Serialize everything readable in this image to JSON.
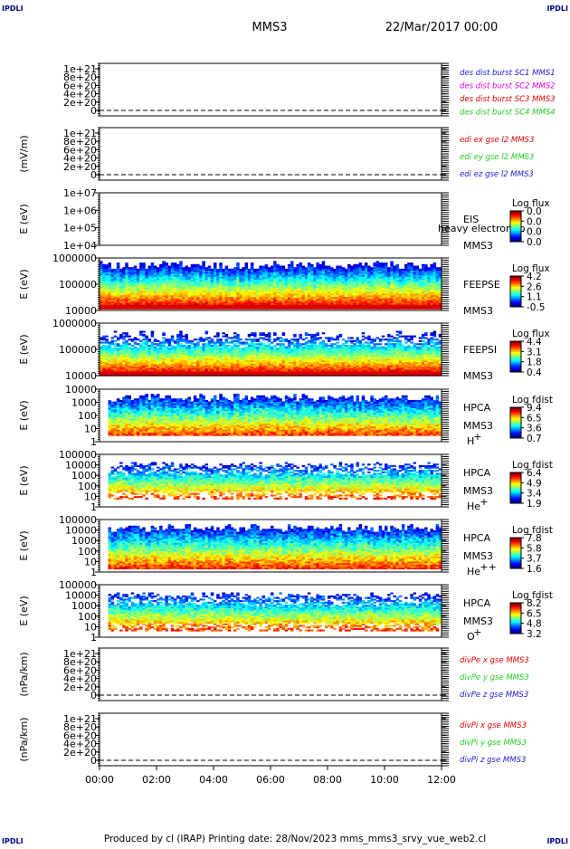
{
  "corners": {
    "tl": "IPDLI",
    "tr": "IPDLI",
    "bl": "IPDLI",
    "br": "IPDLI"
  },
  "header": {
    "mission": "MMS3",
    "date": "22/Mar/2017 00:00"
  },
  "footer": {
    "text": "Produced by cl (IRAP)   Printing date: 28/Nov/2023   mms_mms3_srvy_vue_web2.cl"
  },
  "colors": {
    "blue": "#1a1ad6",
    "magenta": "#e000e0",
    "red": "#e00000",
    "green": "#22cc22"
  },
  "chart_data": [
    {
      "type": "line",
      "panel": "des-dist",
      "ylabel": "",
      "yticks": [
        "1e+21",
        "8e+20",
        "6e+20",
        "4e+20",
        "2e+20",
        "0"
      ],
      "series": [
        {
          "name": "des dist burst SC1 MMS1",
          "color": "blue"
        },
        {
          "name": "des dist burst SC2 MMS2",
          "color": "magenta"
        },
        {
          "name": "des dist burst SC3 MMS3",
          "color": "red"
        },
        {
          "name": "des dist burst SC4 MMS4",
          "color": "green"
        }
      ]
    },
    {
      "type": "line",
      "panel": "edi",
      "ylabel": "(mV/m)",
      "yticks": [
        "1e+21",
        "8e+20",
        "6e+20",
        "4e+20",
        "2e+20",
        "0"
      ],
      "series": [
        {
          "name": "edi ex gse l2 MMS3",
          "color": "red"
        },
        {
          "name": "edi ey gse l2 MMS3",
          "color": "green"
        },
        {
          "name": "edi ez gse l2 MMS3",
          "color": "blue"
        }
      ]
    },
    {
      "type": "heatmap",
      "panel": "eis",
      "ylabel": "E (eV)",
      "yticks": [
        "1e+07",
        "1e+06",
        "1e+05",
        "1e+04"
      ],
      "inst": [
        "EIS",
        "MMS3"
      ],
      "overlay": "heavy electron to",
      "cbar_title": "Log flux",
      "cbar_ticks": [
        "0.0",
        "0.0",
        "0.0",
        "0.0"
      ]
    },
    {
      "type": "heatmap",
      "panel": "feepse",
      "ylabel": "E (eV)",
      "yticks": [
        "1000000",
        "100000",
        "10000"
      ],
      "inst": [
        "FEEPSE",
        "MMS3"
      ],
      "cbar_title": "Log flux",
      "cbar_ticks": [
        "4.2",
        "2.6",
        "1.1",
        "-0.5"
      ]
    },
    {
      "type": "heatmap",
      "panel": "feepsi",
      "ylabel": "E (eV)",
      "yticks": [
        "1000000",
        "100000",
        "10000"
      ],
      "inst": [
        "FEEPSI",
        "MMS3"
      ],
      "cbar_title": "Log flux",
      "cbar_ticks": [
        "4.4",
        "3.1",
        "1.8",
        "0.4"
      ]
    },
    {
      "type": "heatmap",
      "panel": "hpca-h",
      "ylabel": "E (eV)",
      "yticks": [
        "10000",
        "1000",
        "100",
        "10",
        "1"
      ],
      "inst": [
        "HPCA",
        "MMS3"
      ],
      "species": "H",
      "charge": "+",
      "cbar_title": "Log fdist",
      "cbar_ticks": [
        "9.4",
        "6.5",
        "3.6",
        "0.7"
      ]
    },
    {
      "type": "heatmap",
      "panel": "hpca-he",
      "ylabel": "E (eV)",
      "yticks": [
        "100000",
        "10000",
        "1000",
        "100",
        "10",
        "1"
      ],
      "inst": [
        "HPCA",
        "MMS3"
      ],
      "species": "He",
      "charge": "+",
      "cbar_title": "Log fdist",
      "cbar_ticks": [
        "6.4",
        "4.9",
        "3.4",
        "1.9"
      ]
    },
    {
      "type": "heatmap",
      "panel": "hpca-hepp",
      "ylabel": "E (eV)",
      "yticks": [
        "100000",
        "10000",
        "1000",
        "100",
        "10",
        "1"
      ],
      "inst": [
        "HPCA",
        "MMS3"
      ],
      "species": "He",
      "charge": "++",
      "cbar_title": "Log fdist",
      "cbar_ticks": [
        "7.8",
        "5.8",
        "3.7",
        "1.6"
      ]
    },
    {
      "type": "heatmap",
      "panel": "hpca-o",
      "ylabel": "E (eV)",
      "yticks": [
        "100000",
        "10000",
        "1000",
        "100",
        "10",
        "1"
      ],
      "inst": [
        "HPCA",
        "MMS3"
      ],
      "species": "O",
      "charge": "+",
      "cbar_title": "Log fdist",
      "cbar_ticks": [
        "8.2",
        "6.5",
        "4.8",
        "3.2"
      ]
    },
    {
      "type": "line",
      "panel": "divpe",
      "ylabel": "(nPa/km)",
      "yticks": [
        "1e+21",
        "8e+20",
        "6e+20",
        "4e+20",
        "2e+20",
        "0"
      ],
      "series": [
        {
          "name": "divPe x gse MMS3",
          "color": "red"
        },
        {
          "name": "divPe y gse MMS3",
          "color": "green"
        },
        {
          "name": "divPe z gse MMS3",
          "color": "blue"
        }
      ]
    },
    {
      "type": "line",
      "panel": "divpi",
      "ylabel": "(nPa/km)",
      "yticks": [
        "1e+21",
        "8e+20",
        "6e+20",
        "4e+20",
        "2e+20",
        "0"
      ],
      "series": [
        {
          "name": "divPi x gse MMS3",
          "color": "red"
        },
        {
          "name": "divPi y gse MMS3",
          "color": "green"
        },
        {
          "name": "divPi z gse MMS3",
          "color": "blue"
        }
      ]
    }
  ],
  "xaxis": {
    "ticks": [
      "00:00",
      "02:00",
      "04:00",
      "06:00",
      "08:00",
      "10:00",
      "12:00"
    ]
  }
}
